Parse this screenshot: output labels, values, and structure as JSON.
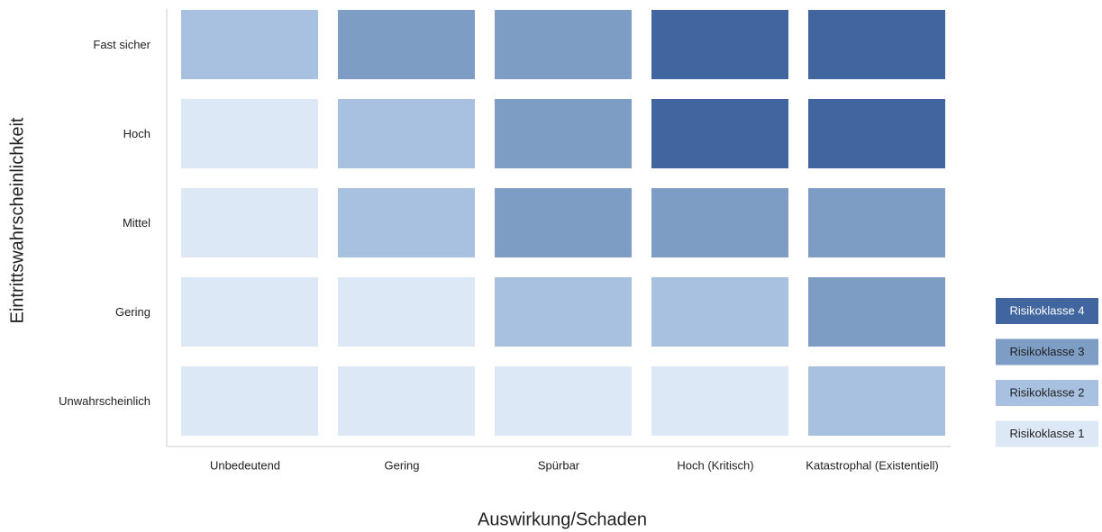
{
  "chart_data": {
    "type": "heatmap",
    "x_label": "Auswirkung/Schaden",
    "y_label": "Eintrittswahrscheinlichkeit",
    "columns": [
      "Unbedeutend",
      "Gering",
      "Spürbar",
      "Hoch (Kritisch)",
      "Katastrophal (Existentiell)"
    ],
    "rows": [
      "Fast sicher",
      "Hoch",
      "Mittel",
      "Gering",
      "Unwahrscheinlich"
    ],
    "values": [
      [
        2,
        3,
        3,
        4,
        4
      ],
      [
        1,
        2,
        3,
        4,
        4
      ],
      [
        1,
        2,
        3,
        3,
        3
      ],
      [
        1,
        1,
        2,
        2,
        3
      ],
      [
        1,
        1,
        1,
        1,
        2
      ]
    ],
    "classes": [
      {
        "name": "Risikoklasse 1",
        "color": "#dde8f6"
      },
      {
        "name": "Risikoklasse 2",
        "color": "#a9c1e1"
      },
      {
        "name": "Risikoklasse 3",
        "color": "#7d9dc4"
      },
      {
        "name": "Risikoklasse 4",
        "color": "#41659e"
      }
    ]
  }
}
